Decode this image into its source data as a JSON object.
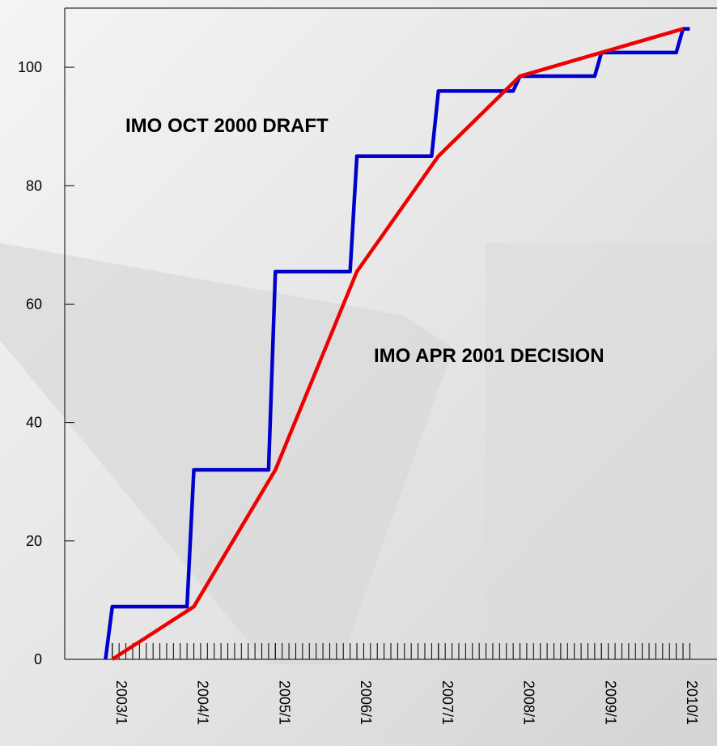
{
  "chart_data": {
    "type": "line",
    "xlim": [
      "2002/6",
      "2010/6"
    ],
    "xticks": [
      "2003/1",
      "2004/1",
      "2005/1",
      "2006/1",
      "2007/1",
      "2008/1",
      "2009/1",
      "2010/1"
    ],
    "ylim": [
      0,
      110
    ],
    "yticks": [
      0,
      20,
      40,
      60,
      80,
      100
    ],
    "grid": false,
    "series": [
      {
        "name": "IMO OCT 2000 DRAFT",
        "color": "#0000cc",
        "x": [
          "2002/12",
          "2003/1",
          "2003/12",
          "2004/1",
          "2004/12",
          "2005/1",
          "2005/12",
          "2006/1",
          "2006/12",
          "2007/1",
          "2007/12",
          "2008/1",
          "2008/12",
          "2009/1",
          "2009/12",
          "2010/1",
          "2010/2"
        ],
        "values": [
          0,
          8.9,
          8.9,
          32,
          32,
          65.5,
          65.5,
          85,
          85,
          96,
          96,
          98.5,
          98.5,
          102.5,
          102.5,
          106.5,
          106.5
        ]
      },
      {
        "name": "IMO APR 2001 DECISION",
        "color": "#ee0000",
        "x": [
          "2003/1",
          "2004/1",
          "2005/1",
          "2006/1",
          "2007/1",
          "2008/1",
          "2009/1",
          "2010/1"
        ],
        "values": [
          0,
          8.9,
          32,
          65.5,
          85,
          98.5,
          102.5,
          106.5
        ]
      }
    ]
  }
}
